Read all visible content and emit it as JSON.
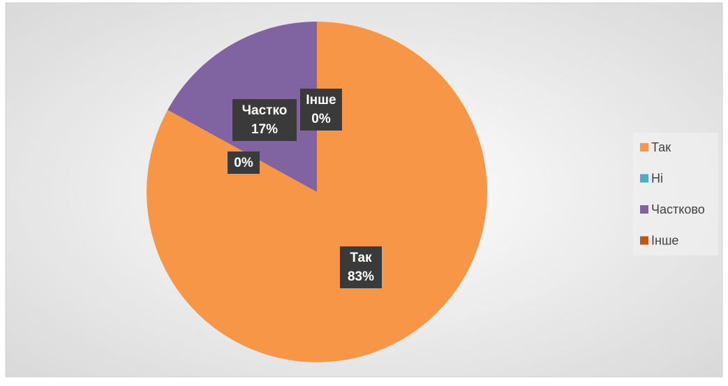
{
  "chart_data": {
    "type": "pie",
    "categories": [
      "Так",
      "Ні",
      "Частково",
      "Інше"
    ],
    "values": [
      83,
      0,
      17,
      0
    ],
    "value_labels": [
      "83%",
      "0%",
      "17%",
      "0%"
    ],
    "label_names": [
      "Так",
      null,
      "Частко",
      "Інше"
    ],
    "colors": [
      "#f79646",
      "#4bacc6",
      "#8064a2",
      "#c0570f"
    ],
    "legend": "right"
  }
}
